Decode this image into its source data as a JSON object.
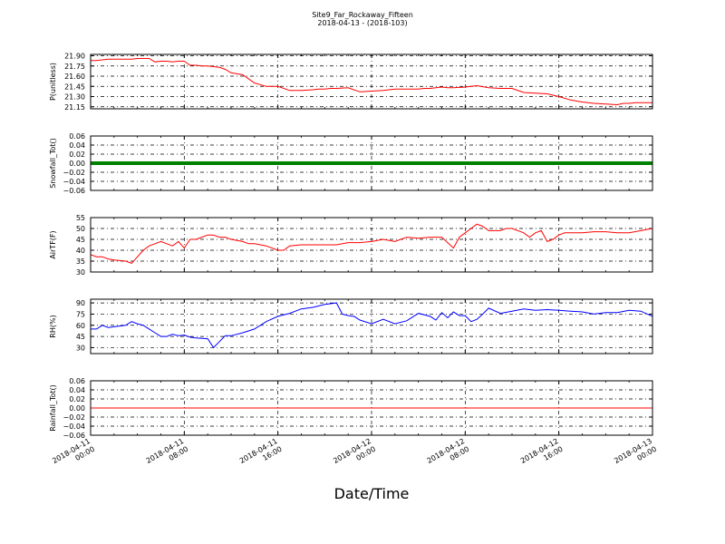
{
  "title": "Site9_Far_Rockaway_Fifteen",
  "subtitle": "2018-04-13 - (2018-103)",
  "xlabel": "Date/Time",
  "chart_data": [
    {
      "type": "line",
      "ylabel": "P(unitless)",
      "color": "#ff0000",
      "ylim": [
        21.12,
        21.92
      ],
      "yticks": [
        "21.90",
        "21.75",
        "21.60",
        "21.45",
        "21.30",
        "21.15"
      ],
      "grid": true,
      "x": [
        0.0,
        0.5,
        1.0,
        1.5,
        2.0,
        2.5,
        3.0,
        3.5,
        4.0,
        4.5,
        5.0,
        5.5,
        6.0,
        6.5,
        7.0,
        7.5,
        8.0,
        8.5,
        9.0,
        9.5,
        10.0,
        10.5,
        11.0,
        11.5,
        12.0,
        13.0,
        14.0,
        15.0,
        16.0,
        17.0,
        18.0,
        19.0,
        19.5,
        20.0,
        20.5,
        21.0,
        22.0,
        23.0,
        24.0,
        25.0,
        25.5,
        26.0,
        27.0,
        28.0,
        28.5,
        29.0,
        30.0,
        30.5,
        31.0,
        32.0,
        32.5,
        33.0,
        34.0,
        35.0,
        36.0,
        37.0,
        38.0,
        39.0,
        40.0,
        41.0,
        42.0,
        43.0,
        44.0,
        45.0,
        45.5,
        46.0,
        46.5,
        47.0,
        48.0
      ],
      "y": [
        21.83,
        21.83,
        21.84,
        21.85,
        21.85,
        21.85,
        21.85,
        21.85,
        21.86,
        21.86,
        21.86,
        21.81,
        21.82,
        21.82,
        21.81,
        21.82,
        21.82,
        21.76,
        21.76,
        21.75,
        21.75,
        21.74,
        21.73,
        21.7,
        21.65,
        21.62,
        21.5,
        21.45,
        21.45,
        21.39,
        21.39,
        21.4,
        21.41,
        21.41,
        21.42,
        21.42,
        21.43,
        21.37,
        21.38,
        21.39,
        21.4,
        21.41,
        21.41,
        21.41,
        21.42,
        21.42,
        21.44,
        21.43,
        21.43,
        21.44,
        21.45,
        21.46,
        21.43,
        21.42,
        21.42,
        21.36,
        21.35,
        21.34,
        21.3,
        21.25,
        21.22,
        21.2,
        21.19,
        21.18,
        21.2,
        21.2,
        21.21,
        21.21,
        21.21
      ]
    },
    {
      "type": "line",
      "ylabel": "Snowfall_Tot()",
      "color": "#008000",
      "ylim": [
        -0.06,
        0.06
      ],
      "yticks": [
        "0.06",
        "0.04",
        "0.02",
        "0.00",
        "−0.02",
        "−0.04",
        "−0.06"
      ],
      "grid": true,
      "x": [
        0,
        48
      ],
      "y": [
        0.0,
        0.0
      ]
    },
    {
      "type": "line",
      "ylabel": "AirTF(F)",
      "color": "#ff0000",
      "ylim": [
        30,
        55
      ],
      "yticks": [
        "55",
        "50",
        "45",
        "40",
        "35",
        "30"
      ],
      "grid": true,
      "x": [
        0.0,
        0.5,
        1.0,
        1.5,
        2.0,
        3.0,
        3.5,
        4.0,
        4.5,
        5.0,
        5.5,
        6.0,
        6.5,
        7.0,
        7.5,
        8.0,
        8.5,
        9.0,
        9.5,
        10.0,
        10.5,
        11.0,
        11.5,
        12.0,
        13.0,
        13.5,
        14.0,
        15.0,
        16.0,
        16.5,
        17.0,
        18.0,
        19.0,
        19.5,
        20.0,
        21.0,
        22.0,
        23.0,
        24.0,
        25.0,
        26.0,
        27.0,
        28.0,
        29.0,
        30.0,
        31.0,
        31.5,
        32.0,
        32.5,
        33.0,
        33.5,
        34.0,
        35.0,
        35.5,
        36.0,
        37.0,
        37.5,
        38.0,
        38.5,
        39.0,
        39.5,
        40.0,
        40.5,
        41.0,
        42.0,
        43.0,
        44.0,
        45.0,
        46.0,
        47.0,
        48.0
      ],
      "y": [
        38,
        37,
        37,
        36,
        35.5,
        35,
        34,
        37,
        40,
        42,
        43,
        44,
        43,
        42,
        44,
        41,
        45,
        45,
        46,
        47,
        47,
        46,
        46,
        45,
        44,
        43,
        43,
        42,
        40,
        40,
        42,
        42.5,
        42.5,
        42.5,
        42.5,
        42.5,
        43.5,
        43.5,
        44,
        45,
        44,
        46,
        45.5,
        46,
        46,
        41,
        46,
        48,
        50,
        52,
        51,
        49,
        49,
        50,
        50,
        48,
        46,
        48,
        49,
        44,
        45,
        47,
        48,
        48,
        48,
        48.5,
        48.5,
        48,
        48,
        49,
        50
      ]
    },
    {
      "type": "line",
      "ylabel": "RH(%)",
      "color": "#0000ff",
      "ylim": [
        22,
        95
      ],
      "yticks": [
        "90",
        "75",
        "60",
        "45",
        "30"
      ],
      "grid": true,
      "x": [
        0.0,
        0.5,
        1.0,
        1.5,
        2.0,
        3.0,
        3.5,
        4.0,
        4.5,
        5.0,
        5.5,
        6.0,
        6.5,
        7.0,
        7.5,
        8.0,
        8.5,
        9.0,
        10.0,
        10.5,
        11.0,
        11.5,
        12.0,
        13.0,
        14.0,
        15.0,
        16.0,
        17.0,
        18.0,
        19.0,
        20.0,
        21.0,
        21.5,
        22.0,
        22.5,
        23.0,
        24.0,
        25.0,
        26.0,
        27.0,
        28.0,
        29.0,
        29.5,
        30.0,
        30.5,
        31.0,
        31.5,
        32.0,
        32.5,
        33.0,
        33.5,
        34.0,
        35.0,
        36.0,
        37.0,
        38.0,
        39.0,
        40.0,
        41.0,
        42.0,
        43.0,
        44.0,
        45.0,
        46.0,
        47.0,
        48.0
      ],
      "y": [
        55,
        55,
        60,
        57,
        58,
        60,
        65,
        62,
        60,
        55,
        50,
        45,
        45,
        48,
        46,
        47,
        44,
        43,
        42,
        30,
        38,
        46,
        46,
        50,
        55,
        65,
        72,
        76,
        82,
        84,
        88,
        90,
        75,
        73,
        72,
        67,
        62,
        68,
        62,
        66,
        76,
        72,
        67,
        77,
        70,
        78,
        73,
        73,
        65,
        68,
        75,
        83,
        76,
        79,
        82,
        80,
        81,
        80,
        79,
        78,
        75,
        77,
        77,
        80,
        79,
        72
      ]
    },
    {
      "type": "line",
      "ylabel": "Rainfall_Tot()",
      "color": "#ff0000",
      "ylim": [
        -0.06,
        0.06
      ],
      "yticks": [
        "0.06",
        "0.04",
        "0.02",
        "0.00",
        "−0.02",
        "−0.04",
        "−0.06"
      ],
      "grid": true,
      "x": [
        0,
        48
      ],
      "y": [
        0.0,
        0.0
      ]
    }
  ],
  "xaxis": {
    "range": [
      0,
      48
    ],
    "ticks": [
      {
        "pos": 0,
        "date": "2018-04-11",
        "time": "00:00"
      },
      {
        "pos": 8,
        "date": "2018-04-11",
        "time": "08:00"
      },
      {
        "pos": 16,
        "date": "2018-04-11",
        "time": "16:00"
      },
      {
        "pos": 24,
        "date": "2018-04-12",
        "time": "00:00"
      },
      {
        "pos": 32,
        "date": "2018-04-12",
        "time": "08:00"
      },
      {
        "pos": 40,
        "date": "2018-04-12",
        "time": "16:00"
      },
      {
        "pos": 48,
        "date": "2018-04-13",
        "time": "00:00"
      }
    ]
  }
}
